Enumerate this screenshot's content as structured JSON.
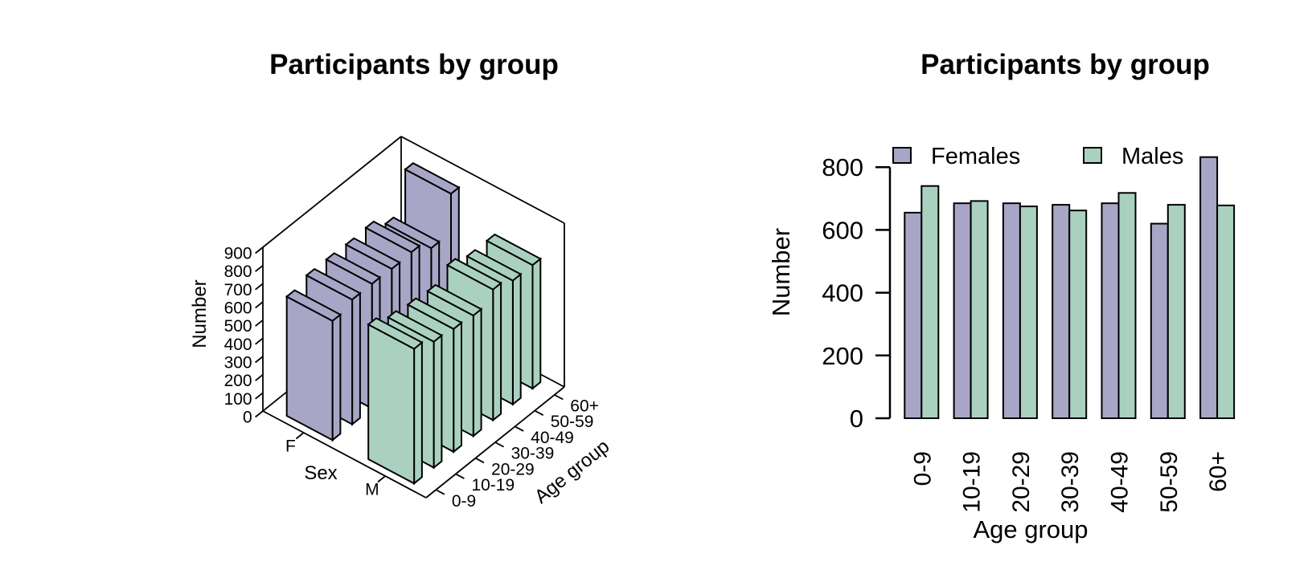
{
  "chart_data": [
    {
      "id": "left-3d-barchart",
      "type": "bar",
      "subtype": "bar3d",
      "title": "Participants by group",
      "xlabel": "Sex",
      "ylabel": "Age group",
      "zlabel": "Number",
      "x_categories": [
        "F",
        "M"
      ],
      "y_categories": [
        "0-9",
        "10-19",
        "20-29",
        "30-39",
        "40-49",
        "50-59",
        "60+"
      ],
      "z_ticks": [
        0,
        100,
        200,
        300,
        400,
        500,
        600,
        700,
        800,
        900
      ],
      "zlim": [
        0,
        900
      ],
      "grid": false,
      "series": [
        {
          "name": "F",
          "color": "#a8a6c6",
          "values": [
            655,
            685,
            685,
            680,
            685,
            620,
            832
          ]
        },
        {
          "name": "M",
          "color": "#aad1c0",
          "values": [
            740,
            692,
            675,
            662,
            718,
            680,
            678
          ]
        }
      ]
    },
    {
      "id": "right-grouped-barchart",
      "type": "bar",
      "subtype": "grouped-vertical",
      "title": "Participants by group",
      "xlabel": "Age group",
      "ylabel": "Number",
      "categories": [
        "0-9",
        "10-19",
        "20-29",
        "30-39",
        "40-49",
        "50-59",
        "60+"
      ],
      "y_ticks": [
        0,
        200,
        400,
        600,
        800
      ],
      "ylim": [
        0,
        860
      ],
      "grid": false,
      "legend": {
        "position": "top-inside",
        "entries": [
          {
            "label": "Females",
            "color": "#a8a6c6"
          },
          {
            "label": "Males",
            "color": "#aad1c0"
          }
        ]
      },
      "series": [
        {
          "name": "Females",
          "color": "#a8a6c6",
          "values": [
            655,
            685,
            685,
            680,
            685,
            620,
            832
          ]
        },
        {
          "name": "Males",
          "color": "#aad1c0",
          "values": [
            740,
            692,
            675,
            662,
            718,
            680,
            678
          ]
        }
      ]
    }
  ],
  "styles": {
    "bar_border": "#000000",
    "axis_color": "#000000",
    "background": "#ffffff"
  }
}
